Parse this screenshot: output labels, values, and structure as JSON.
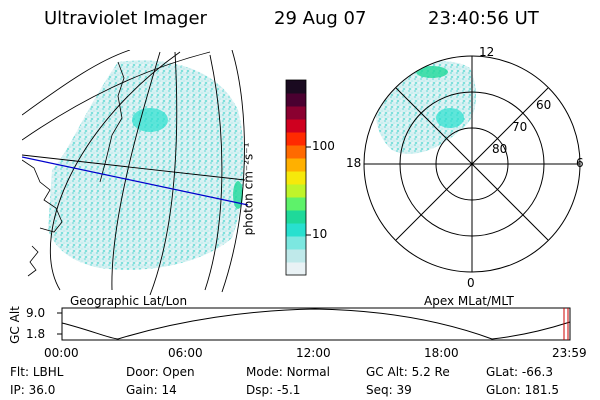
{
  "header": {
    "title": "Ultraviolet Imager",
    "date": "29 Aug 07",
    "time": "23:40:56 UT"
  },
  "map_panel": {
    "caption": "Geographic Lat/Lon"
  },
  "colorbar": {
    "unit_label": "photon cm⁻²s⁻¹",
    "ticks": [
      "100",
      "10"
    ],
    "colors": [
      "#e9f2f5",
      "#bfe9ea",
      "#7ce7e0",
      "#28e0cf",
      "#1fd99a",
      "#5ef26a",
      "#bff42a",
      "#f6e90b",
      "#ffb000",
      "#ff6a00",
      "#ff2a00",
      "#cf001f",
      "#8a0030",
      "#4a0030",
      "#1a0a20"
    ]
  },
  "polar_panel": {
    "caption": "Apex MLat/MLT",
    "mlt_labels": {
      "top": "12",
      "bottom": "0",
      "left": "18",
      "right": "6"
    },
    "lat_labels": [
      "60",
      "70",
      "80"
    ]
  },
  "altitude_plot": {
    "ylabel": "GC Alt",
    "yticks": [
      "9.0",
      "1.8"
    ],
    "xticks": [
      "00:00",
      "06:00",
      "12:00",
      "18:00",
      "23:59"
    ]
  },
  "status": {
    "row1": [
      {
        "label": "Flt:",
        "value": "LBHL"
      },
      {
        "label": "Door:",
        "value": "Open"
      },
      {
        "label": "Mode:",
        "value": "Normal"
      },
      {
        "label": "GC Alt:",
        "value": "5.2 Re"
      },
      {
        "label": "GLat:",
        "value": "-66.3"
      }
    ],
    "row2": [
      {
        "label": "IP:",
        "value": "36.0"
      },
      {
        "label": "Gain:",
        "value": "14"
      },
      {
        "label": "Dsp:",
        "value": "-5.1"
      },
      {
        "label": "Seq:",
        "value": "39"
      },
      {
        "label": "GLon:",
        "value": "181.5"
      }
    ]
  },
  "accent": {
    "track_line": "#0000cc",
    "marker": "#cc0000",
    "aurora": "#2ddfc9"
  }
}
